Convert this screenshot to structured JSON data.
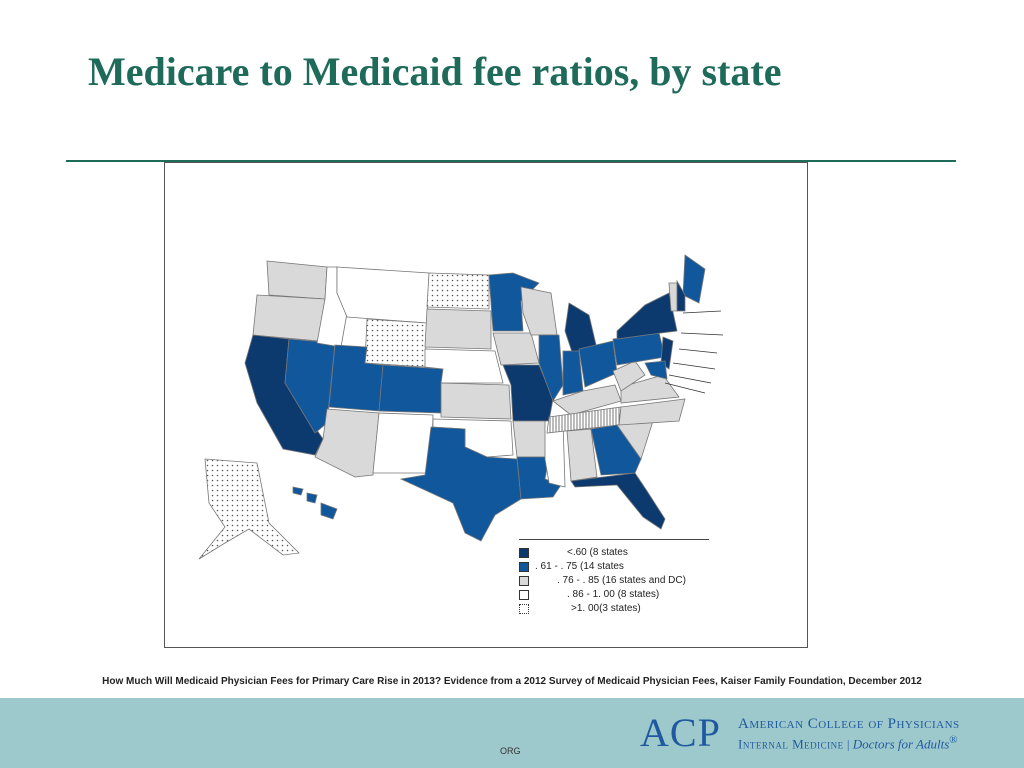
{
  "slide": {
    "title": "Medicare to Medicaid fee ratios, by state",
    "source": "How Much Will Medicaid Physician Fees for Primary Care Rise in 2013? Evidence from a 2012 Survey of Medicaid Physician Fees, Kaiser Family Foundation, December 2012"
  },
  "legend": {
    "items": [
      {
        "label": "<.60 (8 states",
        "color": "#0d3a6e",
        "pattern": "solid"
      },
      {
        "label": ". 61 - . 75 (14 states",
        "color": "#11579c",
        "pattern": "solid"
      },
      {
        "label": ". 76 - . 85 (16 states and DC)",
        "color": "#d9d9d9",
        "pattern": "solid"
      },
      {
        "label": ". 86 - 1. 00 (8 states)",
        "color": "#ffffff",
        "pattern": "solid"
      },
      {
        "label": ">1. 00(3 states)",
        "color": "#ffffff",
        "pattern": "dots"
      }
    ]
  },
  "footer": {
    "org_text": "ORG",
    "logo": {
      "mark": "ACP",
      "line1": "American College of Physicians",
      "line2_a": "Internal Medicine",
      "line2_sep": "|",
      "line2_b": "Doctors for Adults",
      "reg": "®"
    }
  },
  "colors": {
    "title": "#1f6b5a",
    "dark_blue": "#0d3a6e",
    "mid_blue": "#11579c",
    "gray": "#d9d9d9",
    "footer_bg": "#9ec9cc"
  },
  "map_data": {
    "WA": "gray",
    "OR": "gray",
    "CA": "dark",
    "NV": "mid",
    "ID": "white",
    "MT": "white",
    "WY": "dots",
    "UT": "mid",
    "AZ": "gray",
    "CO": "mid",
    "NM": "white",
    "ND": "dots",
    "SD": "gray",
    "NE": "white",
    "KS": "gray",
    "OK": "white",
    "TX": "mid",
    "MN": "mid",
    "IA": "gray",
    "MO": "dark",
    "AR": "gray",
    "LA": "mid",
    "WI": "gray",
    "IL": "mid",
    "MS": "white",
    "MI": "dark",
    "IN": "mid",
    "KY": "gray",
    "TN": "lines",
    "AL": "gray",
    "OH": "mid",
    "GA": "mid",
    "FL": "dark",
    "SC": "gray",
    "NC": "gray",
    "VA": "gray",
    "WV": "gray",
    "PA": "mid",
    "NY": "dark",
    "ME": "mid",
    "VT": "gray",
    "NH": "dark",
    "NJ": "dark",
    "MD": "mid",
    "AK": "dots",
    "HI": "mid"
  }
}
